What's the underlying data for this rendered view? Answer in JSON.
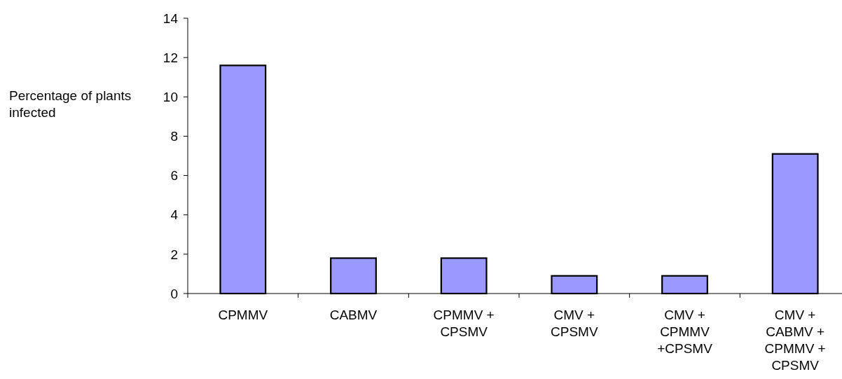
{
  "chart_data": {
    "type": "bar",
    "ylabel": "Percentage of plants infected",
    "categories": [
      "CPMMV",
      "CABMV",
      "CPMMV + CPSMV",
      "CMV + CPSMV",
      "CMV + CPMMV +CPSMV",
      "CMV + CABMV + CPMMV + CPSMV"
    ],
    "values": [
      11.6,
      1.8,
      1.8,
      0.9,
      0.9,
      7.1
    ],
    "color": "#9999ff",
    "ylim": [
      0,
      14
    ],
    "yticks": [
      0,
      2,
      4,
      6,
      8,
      10,
      12,
      14
    ],
    "grid": false
  }
}
